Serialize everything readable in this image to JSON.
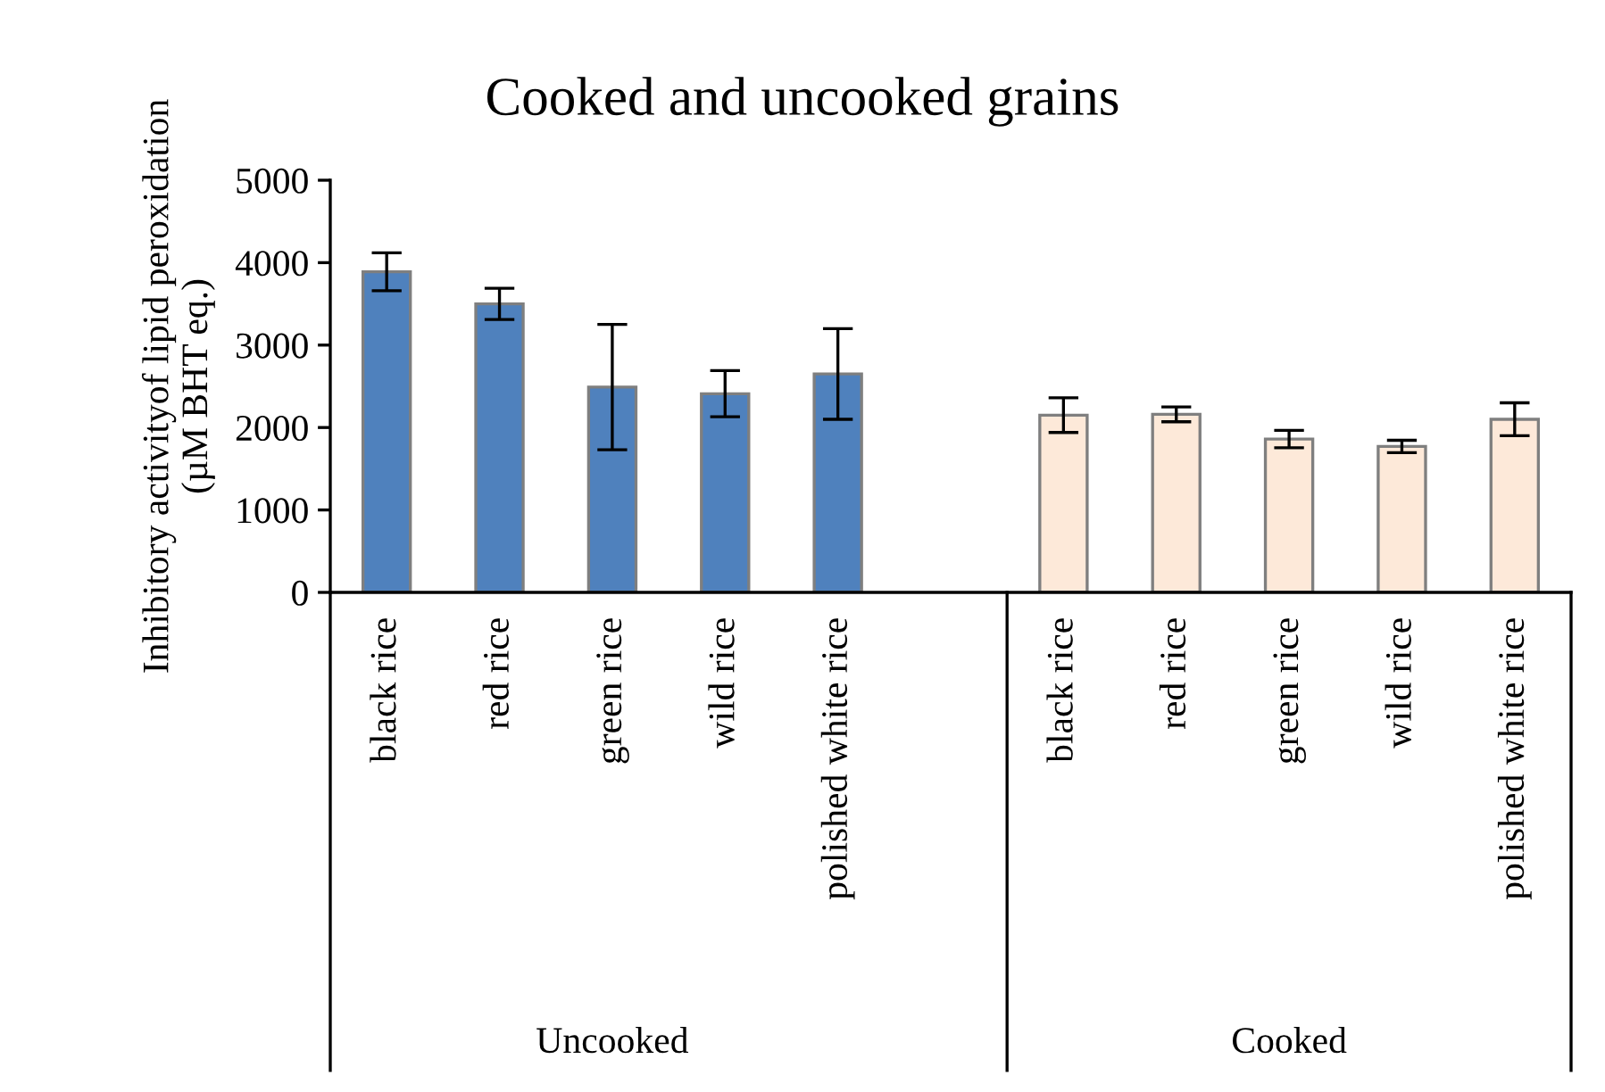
{
  "chart_data": {
    "type": "bar",
    "title": "Cooked and uncooked grains",
    "ylabel": "Inhibitory activityof lipid peroxidation\n(µM BHT eq.)",
    "categories": [
      "black rice",
      "red rice",
      "green rice",
      "wild rice",
      "polished white rice",
      null,
      "black rice",
      "red rice",
      "green rice",
      "wild rice",
      "polished white rice"
    ],
    "values": [
      3890,
      3500,
      2490,
      2410,
      2650,
      null,
      2150,
      2160,
      1860,
      1770,
      2100
    ],
    "errors": [
      230,
      190,
      760,
      280,
      550,
      null,
      210,
      90,
      105,
      75,
      200
    ],
    "colors": [
      "#4f81bd",
      "#4f81bd",
      "#4f81bd",
      "#4f81bd",
      "#4f81bd",
      null,
      "#fde9d9",
      "#fde9d9",
      "#fde9d9",
      "#fde9d9",
      "#fde9d9"
    ],
    "annotations": [
      "Uncooked",
      "Cooked"
    ],
    "ylim": [
      0,
      5000
    ],
    "yticks": [
      0,
      1000,
      2000,
      3000,
      4000,
      5000
    ],
    "grid": false,
    "legend": false
  }
}
